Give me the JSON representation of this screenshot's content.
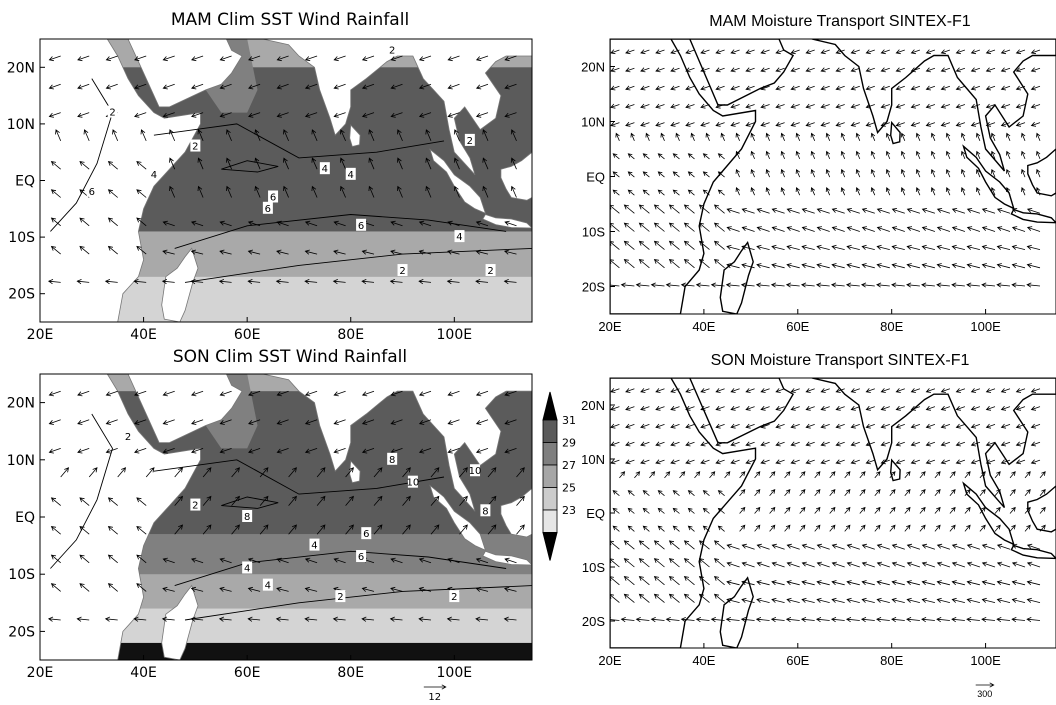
{
  "panels": [
    {
      "id": "mam-sst",
      "title": "MAM  Clim SST Wind Rainfall",
      "kind": "sst",
      "lat_labels": [
        "20N",
        "10N",
        "EQ",
        "10S",
        "20S"
      ],
      "lon_labels": [
        "20E",
        "40E",
        "60E",
        "80E",
        "100E"
      ],
      "contour_labels": [
        "2",
        "2",
        "2",
        "2",
        "4",
        "4",
        "4",
        "4",
        "6",
        "6",
        "6",
        "6",
        "2",
        "2"
      ],
      "shading": "mam"
    },
    {
      "id": "son-sst",
      "title": "SON  Clim SST Wind Rainfall",
      "kind": "sst",
      "lat_labels": [
        "20N",
        "10N",
        "EQ",
        "10S",
        "20S"
      ],
      "lon_labels": [
        "20E",
        "40E",
        "60E",
        "80E",
        "100E"
      ],
      "contour_labels": [
        "2",
        "2",
        "4",
        "4",
        "6",
        "8",
        "8",
        "10",
        "10",
        "6",
        "4",
        "2",
        "2",
        "8"
      ],
      "shading": "son",
      "ref_vector_label": "12"
    },
    {
      "id": "mam-moisture",
      "title": "MAM Moisture Transport SINTEX-F1",
      "kind": "moisture",
      "lat_labels": [
        "20N",
        "10N",
        "EQ",
        "10S",
        "20S"
      ],
      "lon_labels": [
        "20E",
        "40E",
        "60E",
        "80E",
        "100E"
      ],
      "season": "mam"
    },
    {
      "id": "son-moisture",
      "title": "SON Moisture Transport SINTEX-F1",
      "kind": "moisture",
      "lat_labels": [
        "20N",
        "10N",
        "EQ",
        "10S",
        "20S"
      ],
      "lon_labels": [
        "20E",
        "40E",
        "60E",
        "80E",
        "100E"
      ],
      "season": "son",
      "ref_vector_label": "300"
    }
  ],
  "colorbar": {
    "levels": [
      "31",
      "29",
      "27",
      "25",
      "23"
    ],
    "colors": [
      "#000000",
      "#5a5a5a",
      "#7f7f7f",
      "#a6a6a6",
      "#cccccc",
      "#e6e6e6",
      "#000000"
    ]
  },
  "colors": {
    "sst_23": "#d4d4d4",
    "sst_25": "#a9a9a9",
    "sst_27": "#808080",
    "sst_29": "#5b5b5b",
    "sst_31": "#111111",
    "land": "#ffffff",
    "line": "#000000"
  }
}
